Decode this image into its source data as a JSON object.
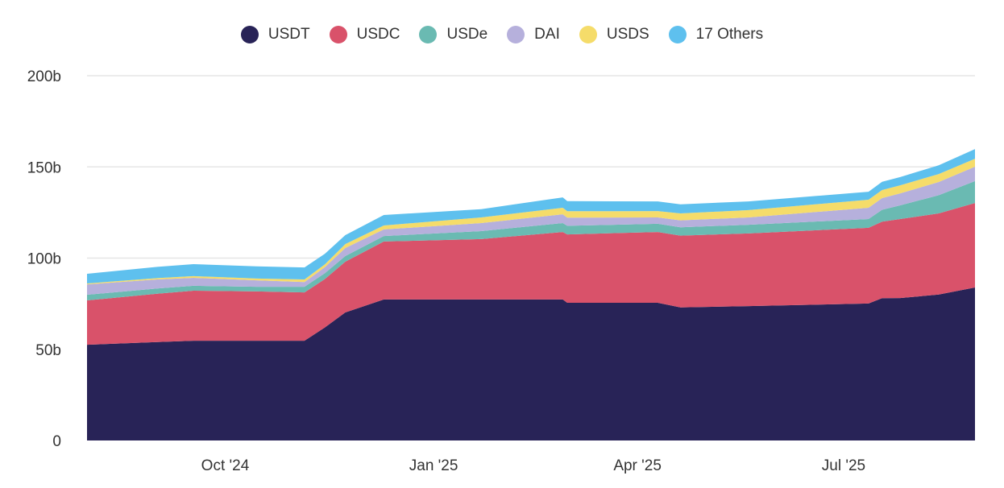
{
  "chart_data": {
    "type": "area",
    "stacked": true,
    "title": "",
    "xlabel": "",
    "ylabel": "",
    "ylim": [
      0,
      200
    ],
    "xlim": [
      "2024-08-01",
      "2025-08-28"
    ],
    "grid": "horizontal",
    "legend_position": "top",
    "y_ticks": [
      {
        "v": 0,
        "label": "0"
      },
      {
        "v": 50,
        "label": "50b"
      },
      {
        "v": 100,
        "label": "100b"
      },
      {
        "v": 150,
        "label": "150b"
      },
      {
        "v": 200,
        "label": "200b"
      }
    ],
    "x_ticks": [
      {
        "d": "2024-10-01",
        "label": "Oct '24"
      },
      {
        "d": "2025-01-01",
        "label": "Jan '25"
      },
      {
        "d": "2025-04-01",
        "label": "Apr '25"
      },
      {
        "d": "2025-07-01",
        "label": "Jul '25"
      }
    ],
    "x": [
      "2024-08-01",
      "2024-09-01",
      "2024-09-17",
      "2024-10-15",
      "2024-11-05",
      "2024-11-14",
      "2024-11-23",
      "2024-12-10",
      "2025-01-22",
      "2025-02-27",
      "2025-03-01",
      "2025-04-10",
      "2025-04-20",
      "2025-05-20",
      "2025-07-12",
      "2025-07-18",
      "2025-07-26",
      "2025-08-12",
      "2025-08-28"
    ],
    "series": [
      {
        "name": "USDT",
        "color": "#282357",
        "values": [
          52.5,
          54,
          54.7,
          54.7,
          54.7,
          62,
          70.2,
          77.3,
          77.3,
          77.3,
          75.5,
          75.5,
          73,
          73.7,
          75.1,
          78,
          78.1,
          80,
          83.9
        ]
      },
      {
        "name": "USDC",
        "color": "#d9526a",
        "values": [
          24.3,
          26.5,
          27.4,
          27,
          26.5,
          26.5,
          27.8,
          31.8,
          33.1,
          37,
          37.5,
          38.8,
          39.3,
          39.8,
          41.5,
          42,
          43.3,
          44.5,
          46.3
        ]
      },
      {
        "name": "USDe",
        "color": "#6abab2",
        "values": [
          3.1,
          2.8,
          2.7,
          2.6,
          3.1,
          3.2,
          3.1,
          3.0,
          4.4,
          4.9,
          4.7,
          4.5,
          4.6,
          4.8,
          4.8,
          6.5,
          7.5,
          10,
          12
        ]
      },
      {
        "name": "DAI",
        "color": "#b6b0dc",
        "values": [
          5.7,
          5.0,
          4.4,
          3.5,
          2.6,
          3.3,
          4.4,
          3.6,
          4.4,
          4.8,
          4.5,
          3.5,
          3.8,
          4.0,
          6.2,
          6.4,
          6.6,
          7.2,
          7.9
        ]
      },
      {
        "name": "USDS",
        "color": "#f5dc6a",
        "values": [
          0.5,
          0.7,
          0.9,
          1.0,
          1.4,
          1.6,
          2.2,
          2.2,
          3.1,
          3.6,
          3.5,
          3.5,
          3.8,
          4.0,
          4.4,
          4.4,
          4.4,
          4.4,
          4.4
        ]
      },
      {
        "name": "17 Others",
        "color": "#5ec0ee",
        "values": [
          5.3,
          6.2,
          6.6,
          6.7,
          6.6,
          5.8,
          4.9,
          5.7,
          4.5,
          5.7,
          5.5,
          5.3,
          5.0,
          4.8,
          4.4,
          4.5,
          4.5,
          4.8,
          5.3
        ]
      }
    ]
  }
}
